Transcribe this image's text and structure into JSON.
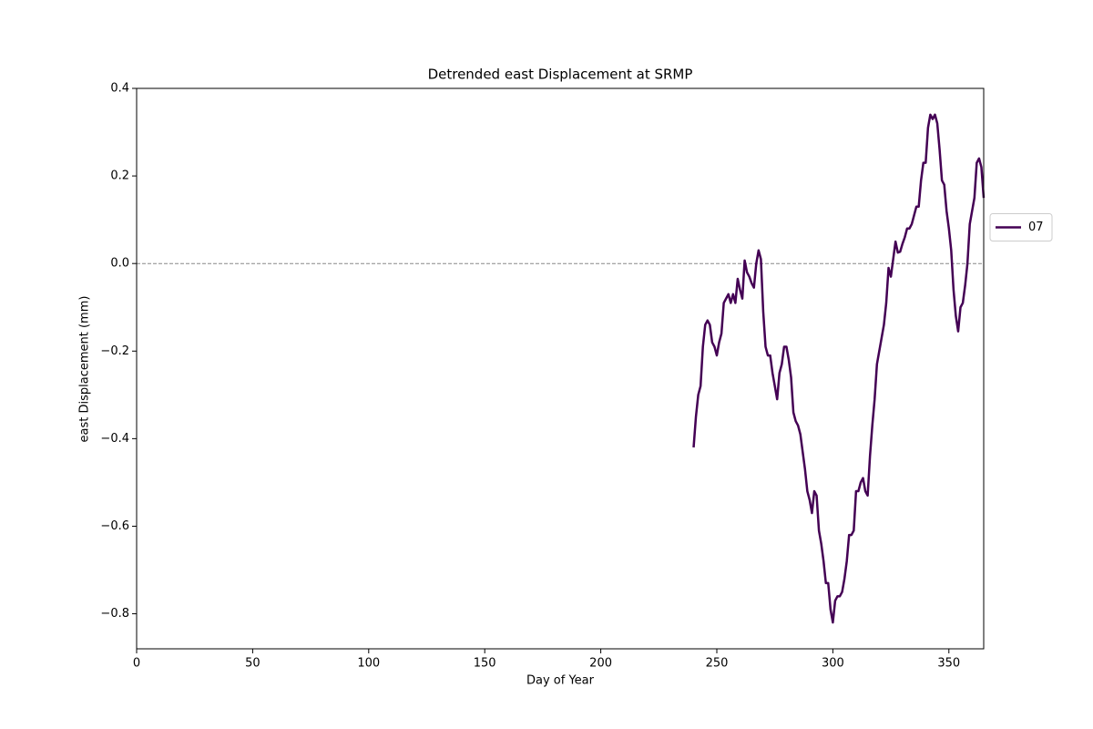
{
  "chart_data": {
    "type": "line",
    "title": "Detrended east Displacement at SRMP",
    "x_label": "Day of Year",
    "y_label": "east Displacement (mm)",
    "x": [
      240,
      241,
      242,
      243,
      244,
      245,
      246,
      247,
      248,
      249,
      250,
      251,
      252,
      253,
      254,
      255,
      256,
      257,
      258,
      259,
      260,
      261,
      262,
      263,
      264,
      265,
      266,
      267,
      268,
      269,
      270,
      271,
      272,
      273,
      274,
      275,
      276,
      277,
      278,
      279,
      280,
      281,
      282,
      283,
      284,
      285,
      286,
      287,
      288,
      289,
      290,
      291,
      292,
      293,
      294,
      295,
      296,
      297,
      298,
      299,
      300,
      301,
      302,
      303,
      304,
      305,
      306,
      307,
      308,
      309,
      310,
      311,
      312,
      313,
      314,
      315,
      316,
      317,
      318,
      319,
      320,
      321,
      322,
      323,
      324,
      325,
      326,
      327,
      328,
      329,
      330,
      331,
      332,
      333,
      334,
      335,
      336,
      337,
      338,
      339,
      340,
      341,
      342,
      343,
      344,
      345,
      346,
      347,
      348,
      349,
      350,
      351,
      352,
      353,
      354,
      355,
      356,
      357,
      358,
      359,
      360,
      361,
      362,
      363,
      364,
      365
    ],
    "series": [
      {
        "name": "07",
        "color": "#440154",
        "values": [
          -0.42,
          -0.35,
          -0.3,
          -0.28,
          -0.19,
          -0.14,
          -0.13,
          -0.14,
          -0.18,
          -0.19,
          -0.21,
          -0.18,
          -0.16,
          -0.09,
          -0.08,
          -0.07,
          -0.09,
          -0.07,
          -0.09,
          -0.035,
          -0.06,
          -0.08,
          0.007,
          -0.02,
          -0.03,
          -0.045,
          -0.055,
          0.0,
          0.03,
          0.01,
          -0.11,
          -0.19,
          -0.21,
          -0.21,
          -0.25,
          -0.28,
          -0.31,
          -0.25,
          -0.23,
          -0.19,
          -0.19,
          -0.22,
          -0.26,
          -0.34,
          -0.36,
          -0.37,
          -0.39,
          -0.43,
          -0.47,
          -0.52,
          -0.54,
          -0.57,
          -0.52,
          -0.53,
          -0.61,
          -0.64,
          -0.68,
          -0.73,
          -0.73,
          -0.79,
          -0.82,
          -0.77,
          -0.76,
          -0.76,
          -0.75,
          -0.72,
          -0.68,
          -0.62,
          -0.62,
          -0.61,
          -0.52,
          -0.52,
          -0.5,
          -0.49,
          -0.52,
          -0.53,
          -0.44,
          -0.37,
          -0.31,
          -0.23,
          -0.2,
          -0.17,
          -0.14,
          -0.09,
          -0.01,
          -0.03,
          0.01,
          0.05,
          0.025,
          0.027,
          0.045,
          0.06,
          0.08,
          0.08,
          0.09,
          0.11,
          0.13,
          0.13,
          0.19,
          0.23,
          0.23,
          0.31,
          0.34,
          0.33,
          0.34,
          0.32,
          0.26,
          0.19,
          0.18,
          0.12,
          0.08,
          0.03,
          -0.06,
          -0.12,
          -0.155,
          -0.1,
          -0.09,
          -0.05,
          0.0,
          0.09,
          0.12,
          0.15,
          0.23,
          0.24,
          0.22,
          0.15
        ]
      }
    ],
    "xlim": [
      0,
      365
    ],
    "ylim": [
      -0.88,
      0.4
    ],
    "xticks": [
      0,
      50,
      100,
      150,
      200,
      250,
      300,
      350
    ],
    "yticks": [
      {
        "value": -0.8,
        "label": "−0.8"
      },
      {
        "value": -0.6,
        "label": "−0.6"
      },
      {
        "value": -0.4,
        "label": "−0.4"
      },
      {
        "value": -0.2,
        "label": "−0.2"
      },
      {
        "value": 0,
        "label": "0.0"
      },
      0.2,
      0.4
    ],
    "hline": 0,
    "legend": "outside right"
  }
}
